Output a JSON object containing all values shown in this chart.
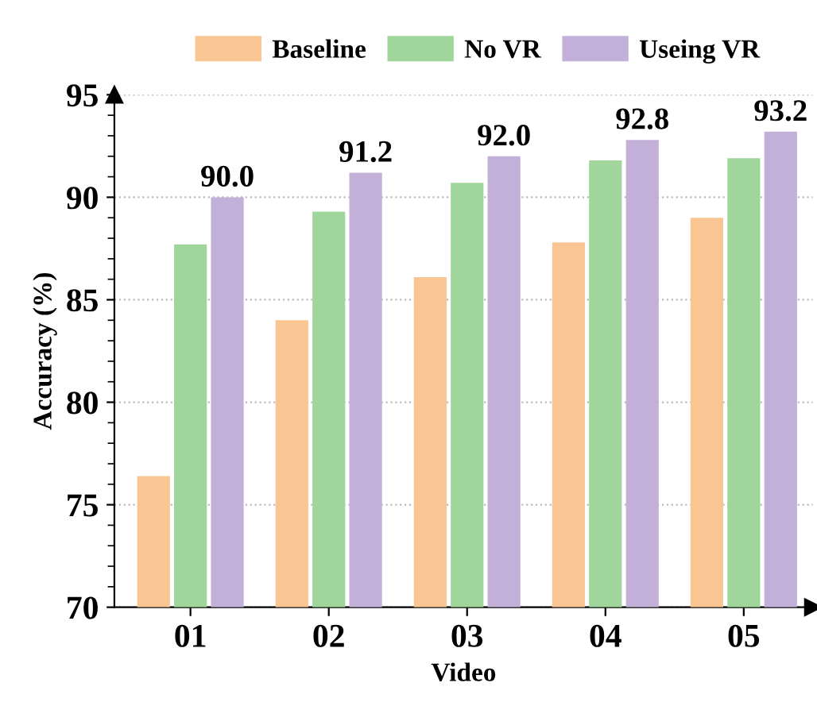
{
  "chart_data": {
    "type": "bar",
    "xlabel": "Video",
    "ylabel": "Accuracy (%)",
    "categories": [
      "01",
      "02",
      "03",
      "04",
      "05"
    ],
    "series": [
      {
        "name": "Baseline",
        "color": "#f9c592",
        "values": [
          76.4,
          84.0,
          86.1,
          87.8,
          89.0
        ]
      },
      {
        "name": "No VR",
        "color": "#a0d69c",
        "values": [
          87.7,
          89.3,
          90.7,
          91.8,
          91.9
        ]
      },
      {
        "name": "Useing VR",
        "color": "#c2b0d8",
        "values": [
          90.0,
          91.2,
          92.0,
          92.8,
          93.2
        ],
        "value_labels": [
          "90.0",
          "91.2",
          "92.0",
          "92.8",
          "93.2"
        ]
      }
    ],
    "ylim": [
      70,
      95
    ],
    "yticks": [
      70,
      75,
      80,
      85,
      90,
      95
    ],
    "grid": "y",
    "legend": "top"
  }
}
